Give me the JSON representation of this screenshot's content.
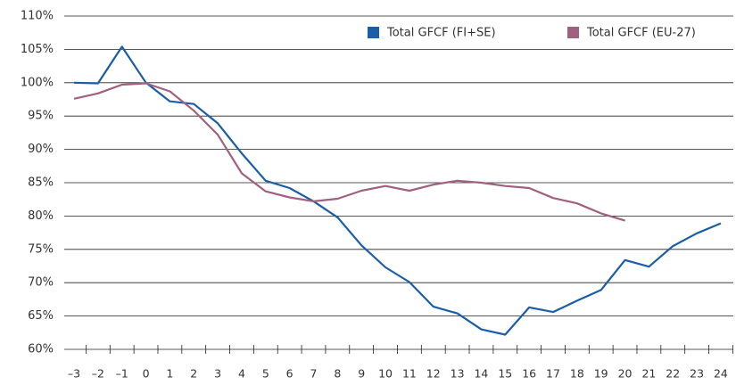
{
  "chart_data": {
    "type": "line",
    "categories": [
      "–3",
      "–2",
      "–1",
      "0",
      "1",
      "2",
      "3",
      "4",
      "5",
      "6",
      "7",
      "8",
      "9",
      "10",
      "11",
      "12",
      "13",
      "14",
      "15",
      "16",
      "17",
      "18",
      "19",
      "20",
      "21",
      "22",
      "23",
      "24"
    ],
    "series": [
      {
        "name": "Total GFCF (FI+SE)",
        "color": "#1a5ea8",
        "values": [
          100,
          99.9,
          105.4,
          100,
          97.2,
          96.8,
          93.9,
          89.4,
          85.3,
          84.2,
          82.2,
          79.8,
          75.6,
          72.3,
          70.1,
          66.4,
          65.4,
          63,
          62.2,
          66.3,
          65.6,
          67.3,
          68.9,
          73.4,
          72.4,
          75.5,
          77.4,
          78.9
        ]
      },
      {
        "name": "Total GFCF (EU-27)",
        "color": "#a0607f",
        "values": [
          97.6,
          98.4,
          99.7,
          99.9,
          98.7,
          95.8,
          92.2,
          86.4,
          83.7,
          82.8,
          82.2,
          82.6,
          83.8,
          84.5,
          83.8,
          84.7,
          85.3,
          85,
          84.5,
          84.2,
          82.7,
          81.9,
          80.4,
          79.3,
          null,
          null,
          null,
          null
        ]
      }
    ],
    "ylim": [
      60,
      110
    ],
    "yticks": [
      {
        "value": 60,
        "label": "60%"
      },
      {
        "value": 65,
        "label": "65%"
      },
      {
        "value": 70,
        "label": "70%"
      },
      {
        "value": 75,
        "label": "75%"
      },
      {
        "value": 80,
        "label": "80%"
      },
      {
        "value": 85,
        "label": "85%"
      },
      {
        "value": 90,
        "label": "90%"
      },
      {
        "value": 95,
        "label": "95%"
      },
      {
        "value": 100,
        "label": "100%"
      },
      {
        "value": 105,
        "label": "105%"
      },
      {
        "value": 110,
        "label": "110%"
      }
    ],
    "grid": true,
    "legend": "top-right"
  }
}
